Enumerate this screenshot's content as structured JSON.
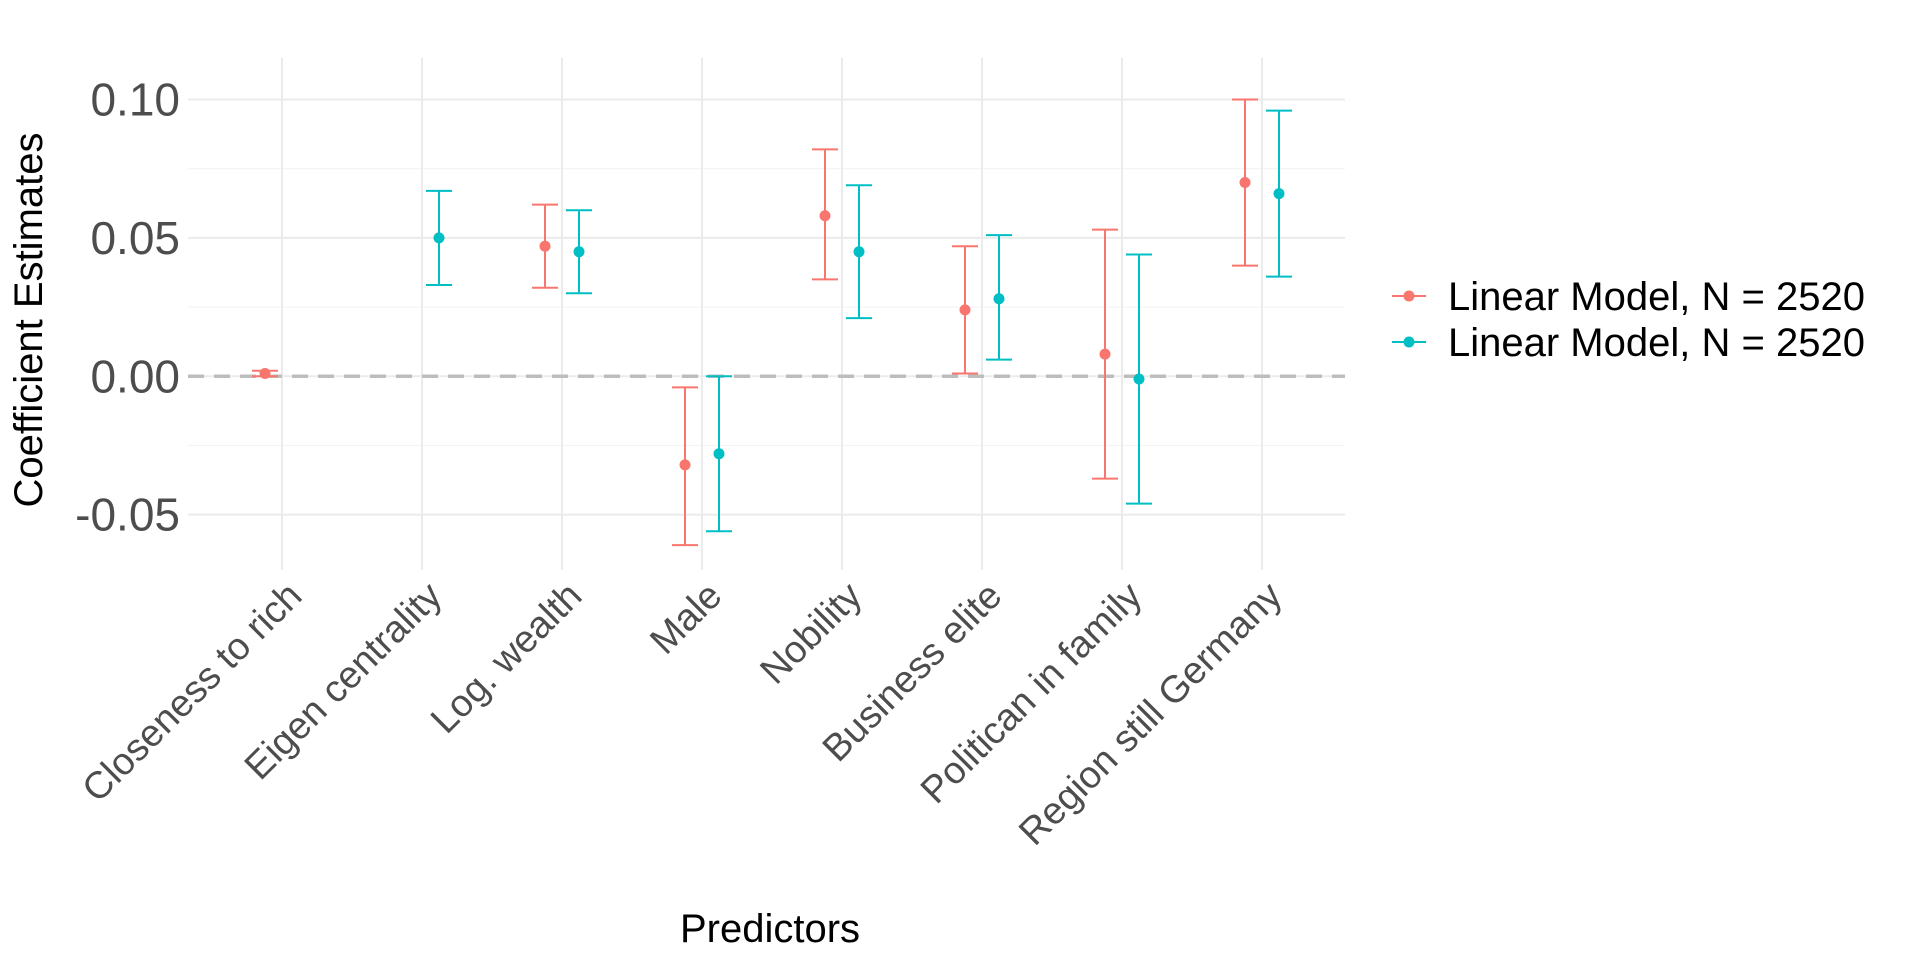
{
  "chart_data": {
    "type": "scatter",
    "subtype": "coefficient-plot-with-error-bars",
    "xlabel": "Predictors",
    "ylabel": "Coefficient Estimates",
    "ylim": [
      -0.07,
      0.115
    ],
    "yticks": [
      -0.05,
      0.0,
      0.05,
      0.1
    ],
    "ytick_labels": [
      "-0.05",
      "0.00",
      "0.05",
      "0.10"
    ],
    "reference_line": {
      "y": 0,
      "style": "dashed",
      "color": "#bdbdbd"
    },
    "grid": true,
    "legend_position": "right",
    "categories": [
      "Closeness to rich",
      "Eigen centrality",
      "Log. wealth",
      "Male",
      "Nobility",
      "Business elite",
      "Politican in family",
      "Region still Germany"
    ],
    "series": [
      {
        "name": "Linear Model, N = 2520",
        "color": "#F8766D",
        "points": [
          {
            "category": "Closeness to rich",
            "estimate": 0.001,
            "low": 0.0,
            "high": 0.002
          },
          {
            "category": "Log. wealth",
            "estimate": 0.047,
            "low": 0.032,
            "high": 0.062
          },
          {
            "category": "Male",
            "estimate": -0.032,
            "low": -0.061,
            "high": -0.004
          },
          {
            "category": "Nobility",
            "estimate": 0.058,
            "low": 0.035,
            "high": 0.082
          },
          {
            "category": "Business elite",
            "estimate": 0.024,
            "low": 0.001,
            "high": 0.047
          },
          {
            "category": "Politican in family",
            "estimate": 0.008,
            "low": -0.037,
            "high": 0.053
          },
          {
            "category": "Region still Germany",
            "estimate": 0.07,
            "low": 0.04,
            "high": 0.1
          }
        ]
      },
      {
        "name": "Linear Model, N = 2520",
        "color": "#00BFC4",
        "points": [
          {
            "category": "Eigen centrality",
            "estimate": 0.05,
            "low": 0.033,
            "high": 0.067
          },
          {
            "category": "Log. wealth",
            "estimate": 0.045,
            "low": 0.03,
            "high": 0.06
          },
          {
            "category": "Male",
            "estimate": -0.028,
            "low": -0.056,
            "high": 0.0
          },
          {
            "category": "Nobility",
            "estimate": 0.045,
            "low": 0.021,
            "high": 0.069
          },
          {
            "category": "Business elite",
            "estimate": 0.028,
            "low": 0.006,
            "high": 0.051
          },
          {
            "category": "Politican in family",
            "estimate": -0.001,
            "low": -0.046,
            "high": 0.044
          },
          {
            "category": "Region still Germany",
            "estimate": 0.066,
            "low": 0.036,
            "high": 0.096
          }
        ]
      }
    ]
  }
}
